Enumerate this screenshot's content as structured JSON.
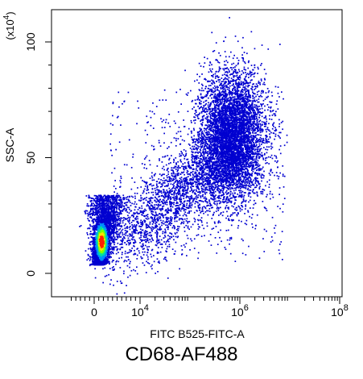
{
  "chart_data": {
    "type": "scatter",
    "title": "CD68-AF488",
    "xlabel": "FITC B525-FITC-A",
    "ylabel": "SSC-A",
    "y_multiplier_base": "(x10",
    "y_multiplier_exp": "4",
    "y_multiplier_close": ")",
    "x_scale": "biexponential",
    "y_scale": "linear",
    "ylim": [
      -10,
      108
    ],
    "yticks": [
      {
        "value": 0,
        "label": "0"
      },
      {
        "value": 50,
        "label": "50"
      },
      {
        "value": 100,
        "label": "100"
      }
    ],
    "xticks": [
      {
        "value": 0,
        "base": "0",
        "exp": ""
      },
      {
        "value": 10000,
        "base": "10",
        "exp": "4"
      },
      {
        "value": 1000000,
        "base": "10",
        "exp": "6"
      },
      {
        "value": 100000000,
        "base": "10",
        "exp": "8"
      }
    ],
    "populations": [
      {
        "name": "negative",
        "x_center": 1500,
        "x_spread": 2500,
        "y_center": 14,
        "y_spread": 6,
        "shape": "comet"
      },
      {
        "name": "positive",
        "x_center": 700000,
        "x_spread": 0.9,
        "y_center": 60,
        "y_spread": 14,
        "shape": "blob"
      },
      {
        "name": "intermediate",
        "x_from": 3000,
        "x_to": 800000,
        "y_from": 10,
        "y_to": 55,
        "shape": "bridge"
      }
    ],
    "density_colors": [
      "#0000d0",
      "#0090ff",
      "#00e0a0",
      "#80ff00",
      "#ffe000",
      "#ff2000"
    ],
    "grid": false,
    "legend": "none"
  }
}
